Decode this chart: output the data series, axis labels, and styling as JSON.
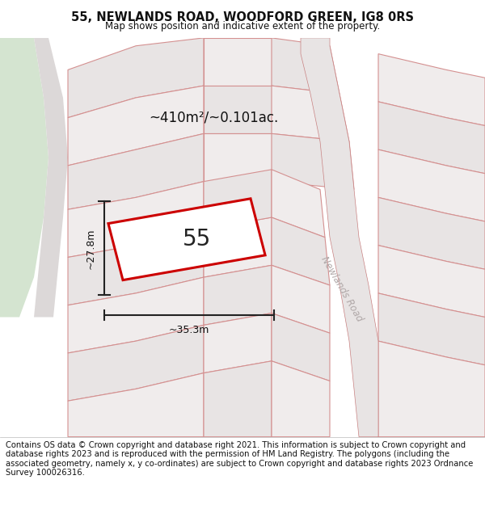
{
  "title": "55, NEWLANDS ROAD, WOODFORD GREEN, IG8 0RS",
  "subtitle": "Map shows position and indicative extent of the property.",
  "footer": "Contains OS data © Crown copyright and database right 2021. This information is subject to Crown copyright and database rights 2023 and is reproduced with the permission of HM Land Registry. The polygons (including the associated geometry, namely x, y co-ordinates) are subject to Crown copyright and database rights 2023 Ordnance Survey 100026316.",
  "area_label": "~410m²/~0.101ac.",
  "number_label": "55",
  "dim_horizontal": "~35.3m",
  "dim_vertical": "~27.8m",
  "road_label": "Newlands Road",
  "map_bg": "#ede9e9",
  "parcel_fill": "#e8e4e4",
  "parcel_fill2": "#f0ecec",
  "highlight_fill": "#ffffff",
  "highlight_edge": "#cc0000",
  "green_fill": "#d4e4d0",
  "road_fill": "#f0eeee",
  "grid_line_color": "#d49090",
  "road_line_color": "#c88080",
  "footer_fontsize": 7.2,
  "title_fontsize": 10.5,
  "subtitle_fontsize": 8.5
}
